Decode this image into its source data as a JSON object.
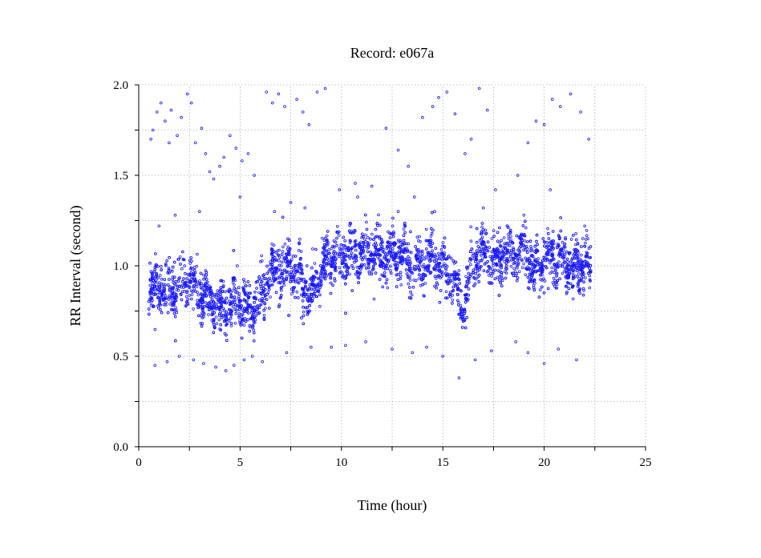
{
  "chart_data": {
    "type": "scatter",
    "title": "Record:  e067a",
    "xlabel": "Time (hour)",
    "ylabel": "RR Interval (second)",
    "xlim": [
      0,
      25
    ],
    "ylim": [
      0,
      2.0
    ],
    "x_ticks": [
      0,
      5,
      10,
      15,
      20,
      25
    ],
    "x_tick_labels": [
      "0",
      "5",
      "10",
      "15",
      "20",
      "25"
    ],
    "y_ticks": [
      0.0,
      0.5,
      1.0,
      1.5,
      2.0
    ],
    "y_tick_labels": [
      "0.0",
      "0.5",
      "1.0",
      "1.5",
      "2.0"
    ],
    "grid": true,
    "marker_color": "#1a1aff",
    "series": [
      {
        "profile": [
          [
            0.5,
            0.87
          ],
          [
            1.0,
            0.88
          ],
          [
            1.5,
            0.86
          ],
          [
            2.0,
            0.9
          ],
          [
            2.5,
            0.91
          ],
          [
            3.0,
            0.86
          ],
          [
            3.5,
            0.79
          ],
          [
            4.0,
            0.76
          ],
          [
            4.5,
            0.8
          ],
          [
            5.0,
            0.79
          ],
          [
            5.5,
            0.75
          ],
          [
            6.0,
            0.83
          ],
          [
            6.5,
            0.95
          ],
          [
            7.0,
            0.97
          ],
          [
            7.5,
            1.0
          ],
          [
            8.0,
            0.9
          ],
          [
            8.5,
            0.83
          ],
          [
            9.0,
            1.0
          ],
          [
            9.5,
            1.05
          ],
          [
            10.0,
            1.06
          ],
          [
            10.5,
            1.07
          ],
          [
            11.0,
            1.06
          ],
          [
            11.5,
            1.07
          ],
          [
            12.0,
            1.06
          ],
          [
            12.5,
            1.07
          ],
          [
            13.0,
            1.07
          ],
          [
            13.5,
            0.98
          ],
          [
            14.0,
            1.02
          ],
          [
            14.5,
            1.05
          ],
          [
            15.0,
            1.0
          ],
          [
            15.5,
            0.92
          ],
          [
            16.0,
            0.76
          ],
          [
            16.5,
            1.02
          ],
          [
            17.0,
            1.06
          ],
          [
            17.5,
            1.04
          ],
          [
            18.0,
            1.05
          ],
          [
            18.5,
            1.08
          ],
          [
            19.0,
            1.1
          ],
          [
            19.5,
            0.96
          ],
          [
            20.0,
            1.05
          ],
          [
            20.5,
            1.06
          ],
          [
            21.0,
            1.04
          ],
          [
            21.5,
            0.98
          ],
          [
            22.0,
            1.03
          ],
          [
            22.3,
            0.95
          ]
        ],
        "outliers": [
          [
            0.6,
            1.7
          ],
          [
            0.7,
            1.75
          ],
          [
            0.9,
            1.85
          ],
          [
            1.1,
            1.9
          ],
          [
            1.3,
            1.8
          ],
          [
            1.5,
            1.68
          ],
          [
            1.6,
            1.86
          ],
          [
            1.9,
            1.72
          ],
          [
            2.1,
            1.82
          ],
          [
            2.4,
            1.95
          ],
          [
            2.6,
            1.9
          ],
          [
            2.8,
            1.68
          ],
          [
            3.1,
            1.76
          ],
          [
            3.3,
            1.62
          ],
          [
            3.5,
            1.52
          ],
          [
            3.7,
            1.48
          ],
          [
            4.0,
            1.55
          ],
          [
            4.2,
            1.6
          ],
          [
            4.5,
            1.72
          ],
          [
            4.8,
            1.65
          ],
          [
            5.1,
            1.58
          ],
          [
            5.4,
            1.62
          ],
          [
            5.7,
            1.5
          ],
          [
            6.3,
            1.96
          ],
          [
            6.6,
            1.9
          ],
          [
            6.9,
            1.95
          ],
          [
            7.2,
            1.88
          ],
          [
            7.8,
            1.92
          ],
          [
            8.1,
            1.85
          ],
          [
            8.4,
            1.78
          ],
          [
            8.8,
            1.96
          ],
          [
            9.2,
            1.98
          ],
          [
            12.2,
            1.76
          ],
          [
            12.8,
            1.64
          ],
          [
            13.3,
            1.55
          ],
          [
            14.0,
            1.82
          ],
          [
            14.5,
            1.88
          ],
          [
            14.8,
            1.93
          ],
          [
            15.2,
            1.96
          ],
          [
            15.6,
            1.84
          ],
          [
            16.1,
            1.62
          ],
          [
            16.4,
            1.7
          ],
          [
            16.8,
            1.98
          ],
          [
            17.2,
            1.86
          ],
          [
            18.7,
            1.5
          ],
          [
            19.2,
            1.68
          ],
          [
            19.6,
            1.8
          ],
          [
            20.0,
            1.78
          ],
          [
            20.4,
            1.92
          ],
          [
            20.8,
            1.88
          ],
          [
            21.3,
            1.95
          ],
          [
            21.8,
            1.85
          ],
          [
            22.2,
            1.7
          ],
          [
            0.8,
            0.45
          ],
          [
            1.4,
            0.47
          ],
          [
            2.0,
            0.5
          ],
          [
            2.7,
            0.48
          ],
          [
            3.2,
            0.46
          ],
          [
            3.8,
            0.44
          ],
          [
            4.3,
            0.42
          ],
          [
            4.7,
            0.45
          ],
          [
            5.2,
            0.48
          ],
          [
            5.6,
            0.5
          ],
          [
            6.1,
            0.47
          ],
          [
            7.3,
            0.52
          ],
          [
            8.5,
            0.55
          ],
          [
            9.5,
            0.55
          ],
          [
            10.2,
            0.56
          ],
          [
            11.2,
            0.58
          ],
          [
            12.5,
            0.54
          ],
          [
            13.5,
            0.52
          ],
          [
            14.2,
            0.55
          ],
          [
            15.0,
            0.5
          ],
          [
            15.8,
            0.38
          ],
          [
            16.6,
            0.48
          ],
          [
            17.4,
            0.53
          ],
          [
            18.6,
            0.58
          ],
          [
            19.2,
            0.52
          ],
          [
            20.0,
            0.46
          ],
          [
            20.7,
            0.54
          ],
          [
            21.6,
            0.48
          ],
          [
            1.0,
            1.22
          ],
          [
            1.8,
            1.28
          ],
          [
            3.0,
            1.3
          ],
          [
            5.0,
            1.38
          ],
          [
            6.7,
            1.3
          ],
          [
            7.5,
            1.35
          ],
          [
            8.2,
            1.32
          ],
          [
            9.9,
            1.42
          ],
          [
            10.8,
            1.38
          ],
          [
            11.5,
            1.44
          ],
          [
            12.8,
            1.3
          ],
          [
            13.6,
            1.38
          ],
          [
            14.6,
            1.3
          ],
          [
            17.0,
            1.32
          ],
          [
            17.6,
            1.42
          ],
          [
            19.0,
            1.28
          ],
          [
            20.3,
            1.42
          ],
          [
            22.0,
            1.22
          ]
        ],
        "spread": 0.085,
        "density_per_hour": 220
      }
    ]
  }
}
